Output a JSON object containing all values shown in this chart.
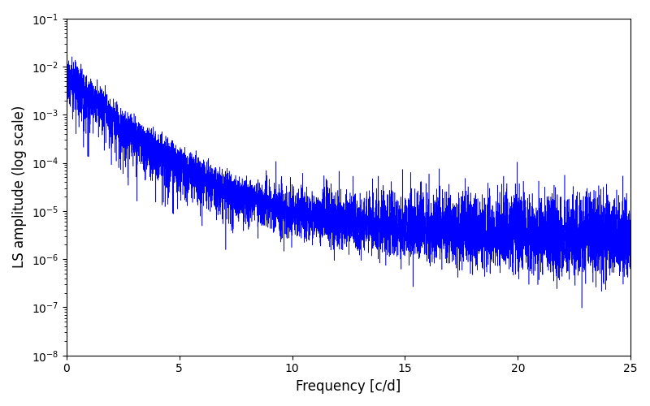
{
  "xlabel": "Frequency [c/d]",
  "ylabel": "LS amplitude (log scale)",
  "xlim": [
    0,
    25
  ],
  "ylim_low": 1e-08,
  "ylim_high": 0.1,
  "line_color": "#0000ff",
  "line_width": 0.4,
  "yscale": "log",
  "background_color": "#ffffff",
  "figsize": [
    8.0,
    5.0
  ],
  "dpi": 100,
  "xticks": [
    0,
    5,
    10,
    15,
    20,
    25
  ],
  "n_points": 8000
}
